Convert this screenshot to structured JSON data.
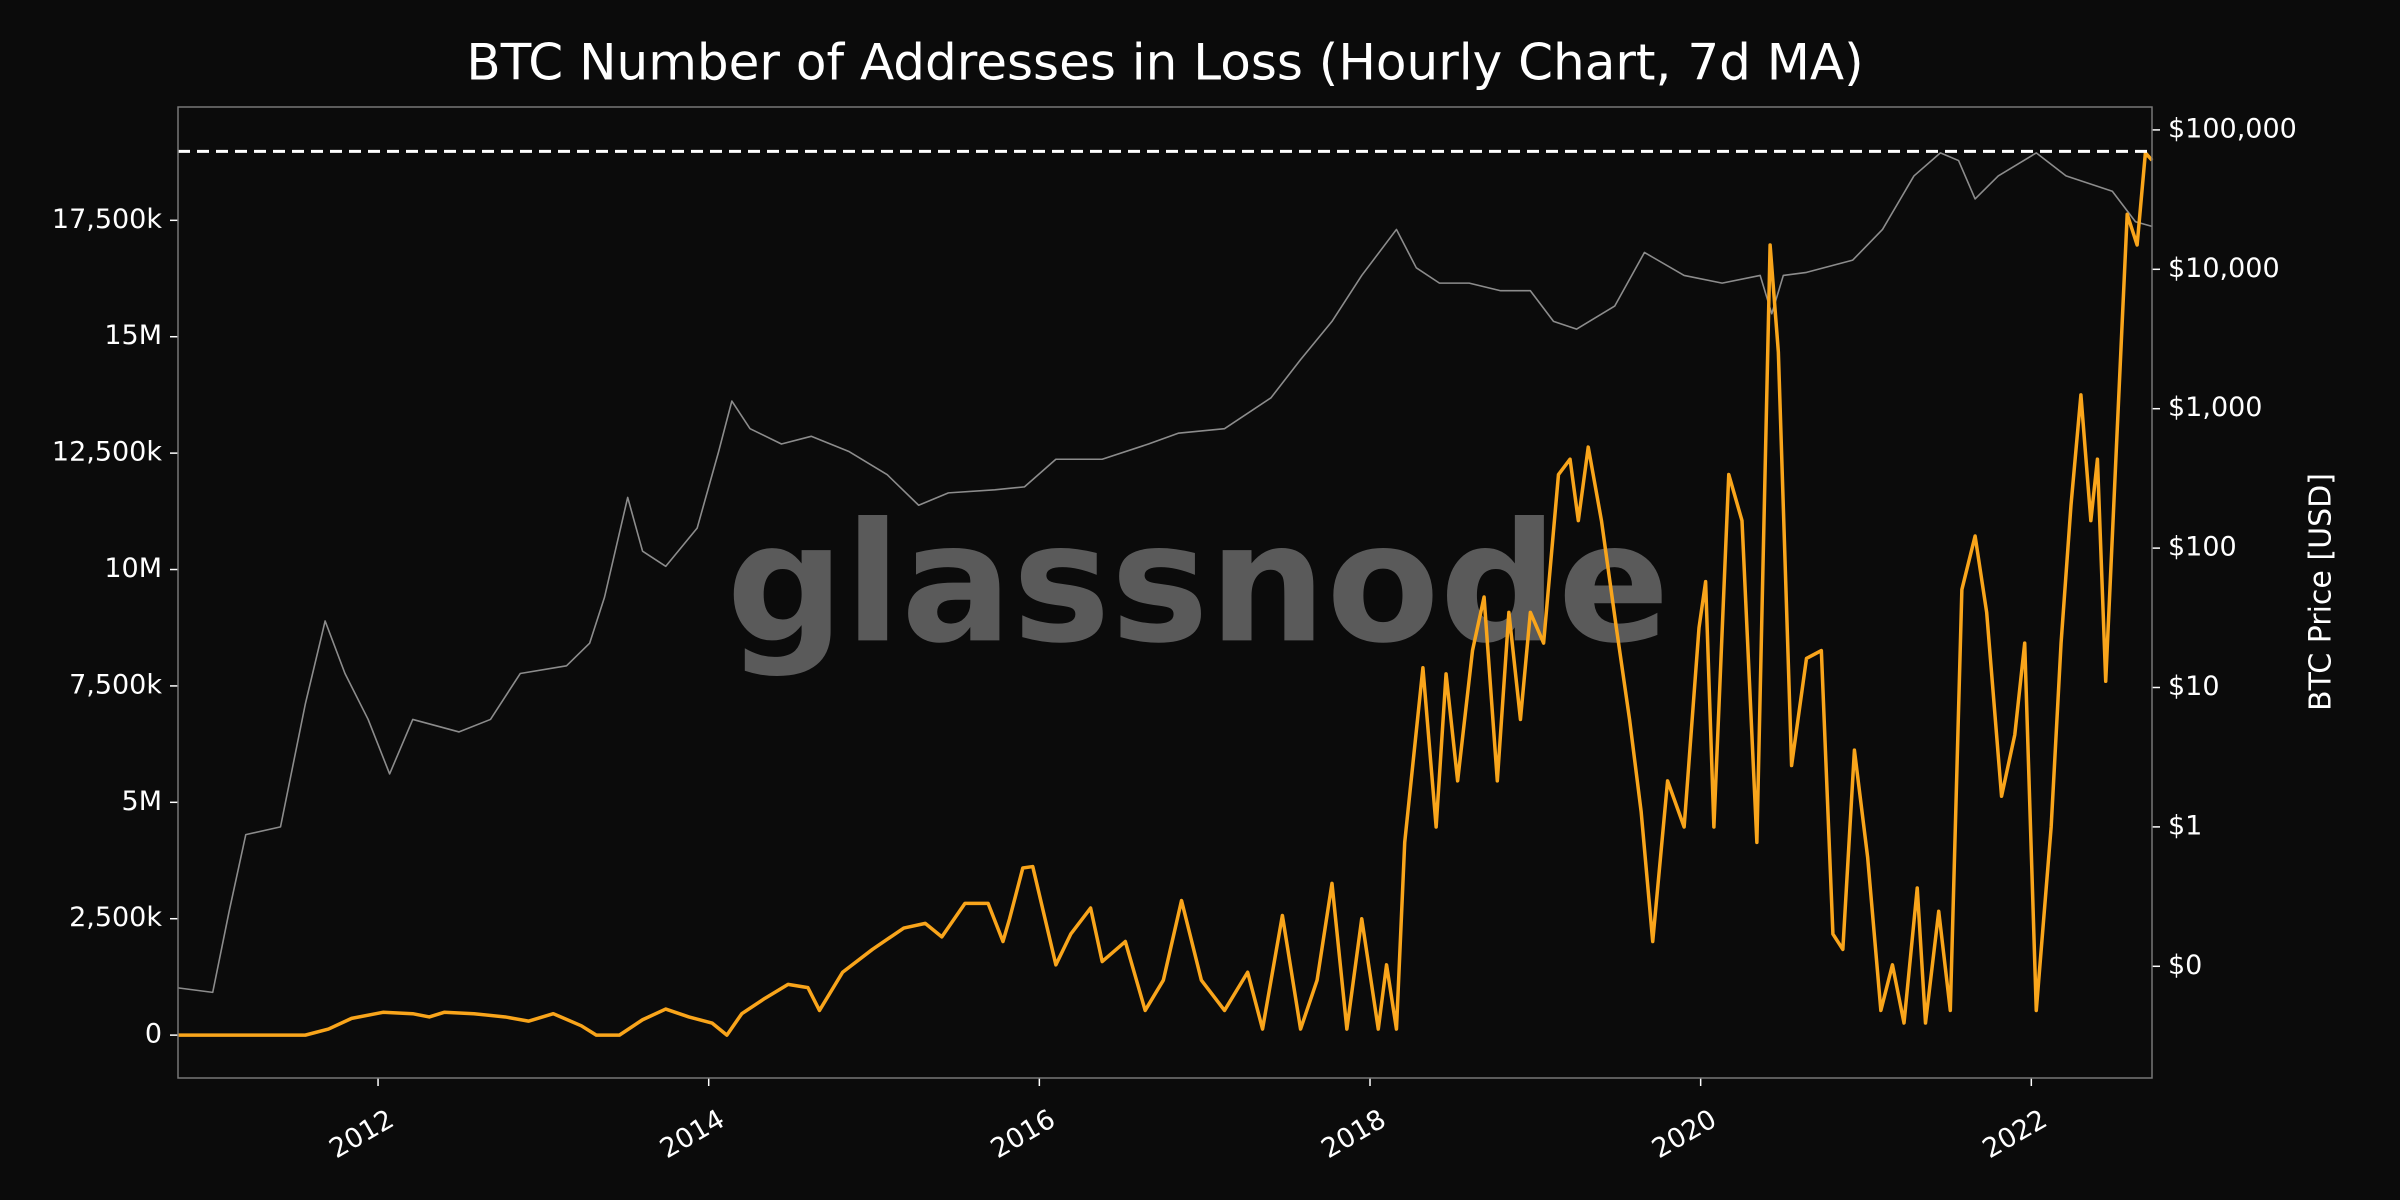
{
  "chart_data": {
    "type": "line",
    "title": "BTC Number of Addresses in Loss (Hourly Chart, 7d MA)",
    "watermark": "glassnode",
    "y2_label": "BTC Price [USD]",
    "xlim": [
      2010.79,
      2022.73
    ],
    "xticks": [
      2012,
      2014,
      2016,
      2018,
      2020,
      2022
    ],
    "ylim": [
      -921000,
      19934000
    ],
    "yticks": [
      0,
      {
        "value": 2500000,
        "label": "2,500k"
      },
      {
        "value": 5000000,
        "label": "5M"
      },
      {
        "value": 7500000,
        "label": "7,500k"
      },
      {
        "value": 10000000,
        "label": "10M"
      },
      {
        "value": 12500000,
        "label": "12,500k"
      },
      {
        "value": 15000000,
        "label": "15M"
      },
      {
        "value": 17500000,
        "label": "17,500k"
      }
    ],
    "y2lim": [
      0.0158,
      146000
    ],
    "y2_log": true,
    "y2ticks": [
      {
        "value": 0.1,
        "label": "$0"
      },
      {
        "value": 1,
        "label": "$1"
      },
      {
        "value": 10,
        "label": "$10"
      },
      {
        "value": 100,
        "label": "$100"
      },
      {
        "value": 1000,
        "label": "$1,000"
      },
      {
        "value": 10000,
        "label": "$10,000"
      },
      {
        "value": 100000,
        "label": "$100,000"
      }
    ],
    "grid": false,
    "reference_line": {
      "value": 18980000,
      "color": "#ffffff",
      "dashed": true
    },
    "series": [
      {
        "name": "Addresses in Loss",
        "color": "#f9a51b",
        "x": [
          2010.79,
          2011.56,
          2011.7,
          2011.84,
          2012.03,
          2012.21,
          2012.31,
          2012.4,
          2012.58,
          2012.77,
          2012.91,
          2013.06,
          2013.23,
          2013.32,
          2013.46,
          2013.6,
          2013.74,
          2013.88,
          2014.02,
          2014.11,
          2014.2,
          2014.34,
          2014.48,
          2014.6,
          2014.67,
          2014.81,
          2014.99,
          2015.18,
          2015.31,
          2015.41,
          2015.55,
          2015.69,
          2015.78,
          2015.82,
          2015.9,
          2015.96,
          2016.1,
          2016.19,
          2016.31,
          2016.38,
          2016.52,
          2016.64,
          2016.75,
          2016.86,
          2016.98,
          2017.12,
          2017.26,
          2017.35,
          2017.47,
          2017.58,
          2017.68,
          2017.77,
          2017.86,
          2017.95,
          2018.05,
          2018.1,
          2018.16,
          2018.21,
          2018.32,
          2018.4,
          2018.46,
          2018.53,
          2018.62,
          2018.69,
          2018.77,
          2018.84,
          2018.91,
          2018.97,
          2019.05,
          2019.14,
          2019.21,
          2019.26,
          2019.32,
          2019.4,
          2019.49,
          2019.57,
          2019.64,
          2019.71,
          2019.8,
          2019.9,
          2019.99,
          2020.03,
          2020.08,
          2020.17,
          2020.25,
          2020.34,
          2020.42,
          2020.47,
          2020.55,
          2020.64,
          2020.73,
          2020.8,
          2020.86,
          2020.93,
          2021.01,
          2021.09,
          2021.16,
          2021.23,
          2021.31,
          2021.36,
          2021.44,
          2021.51,
          2021.58,
          2021.66,
          2021.73,
          2021.82,
          2021.9,
          2021.96,
          2022.03,
          2022.12,
          2022.18,
          2022.24,
          2022.3,
          2022.36,
          2022.4,
          2022.45,
          2022.52,
          2022.58,
          2022.64,
          2022.69,
          2022.73
        ],
        "values": [
          0,
          0,
          130000,
          360000,
          490000,
          460000,
          390000,
          490000,
          460000,
          390000,
          300000,
          460000,
          200000,
          0,
          0,
          330000,
          560000,
          390000,
          260000,
          0,
          460000,
          790000,
          1090000,
          1020000,
          530000,
          1350000,
          1840000,
          2300000,
          2400000,
          2110000,
          2830000,
          2830000,
          2010000,
          2500000,
          3590000,
          3620000,
          1510000,
          2170000,
          2730000,
          1580000,
          2010000,
          530000,
          1180000,
          2890000,
          1180000,
          530000,
          1350000,
          130000,
          2570000,
          130000,
          1180000,
          3260000,
          130000,
          2500000,
          130000,
          1510000,
          130000,
          4140000,
          7890000,
          4470000,
          7760000,
          5460000,
          8260000,
          9410000,
          5460000,
          9080000,
          6780000,
          9080000,
          8420000,
          12040000,
          12370000,
          11050000,
          12630000,
          11050000,
          8750000,
          6780000,
          4800000,
          2010000,
          5460000,
          4470000,
          8750000,
          9740000,
          4470000,
          12040000,
          11050000,
          4140000,
          16970000,
          14670000,
          5790000,
          8090000,
          8260000,
          2170000,
          1840000,
          6120000,
          3820000,
          530000,
          1510000,
          260000,
          3160000,
          260000,
          2660000,
          530000,
          9570000,
          10720000,
          9080000,
          5130000,
          6450000,
          8420000,
          530000,
          4470000,
          8420000,
          11380000,
          13750000,
          11050000,
          12370000,
          7600000,
          13030000,
          17630000,
          16970000,
          18950000,
          18790000
        ]
      },
      {
        "name": "BTC Price",
        "color": "#8c8c8c",
        "axis": "y2",
        "x": [
          2010.79,
          2011.0,
          2011.1,
          2011.2,
          2011.41,
          2011.56,
          2011.68,
          2011.8,
          2011.94,
          2012.07,
          2012.21,
          2012.49,
          2012.68,
          2012.86,
          2013.14,
          2013.28,
          2013.37,
          2013.51,
          2013.6,
          2013.74,
          2013.93,
          2014.06,
          2014.14,
          2014.25,
          2014.44,
          2014.62,
          2014.85,
          2015.08,
          2015.27,
          2015.45,
          2015.73,
          2015.91,
          2016.1,
          2016.38,
          2016.66,
          2016.84,
          2017.12,
          2017.4,
          2017.58,
          2017.77,
          2017.95,
          2018.16,
          2018.28,
          2018.42,
          2018.6,
          2018.79,
          2018.97,
          2019.11,
          2019.25,
          2019.48,
          2019.66,
          2019.9,
          2020.13,
          2020.36,
          2020.43,
          2020.5,
          2020.64,
          2020.92,
          2021.1,
          2021.29,
          2021.45,
          2021.56,
          2021.66,
          2021.8,
          2022.03,
          2022.21,
          2022.49,
          2022.63,
          2022.73
        ],
        "values": [
          0.07,
          0.065,
          0.25,
          0.88,
          1.0,
          7.6,
          30,
          12.6,
          5.9,
          2.4,
          5.9,
          4.8,
          5.9,
          12.6,
          14.3,
          20.8,
          44.5,
          231,
          95,
          74,
          139,
          492,
          1135,
          719,
          558,
          634,
          492,
          336,
          203,
          249,
          262,
          275,
          434,
          434,
          558,
          667,
          719,
          1194,
          2249,
          4231,
          9036,
          19320,
          10250,
          7960,
          7960,
          7020,
          7020,
          4231,
          3724,
          5445,
          13210,
          9036,
          7960,
          9036,
          4800,
          9036,
          9500,
          11640,
          19320,
          46770,
          68400,
          60260,
          31990,
          46770,
          68400,
          46770,
          36300,
          21930,
          20320
        ]
      }
    ]
  }
}
